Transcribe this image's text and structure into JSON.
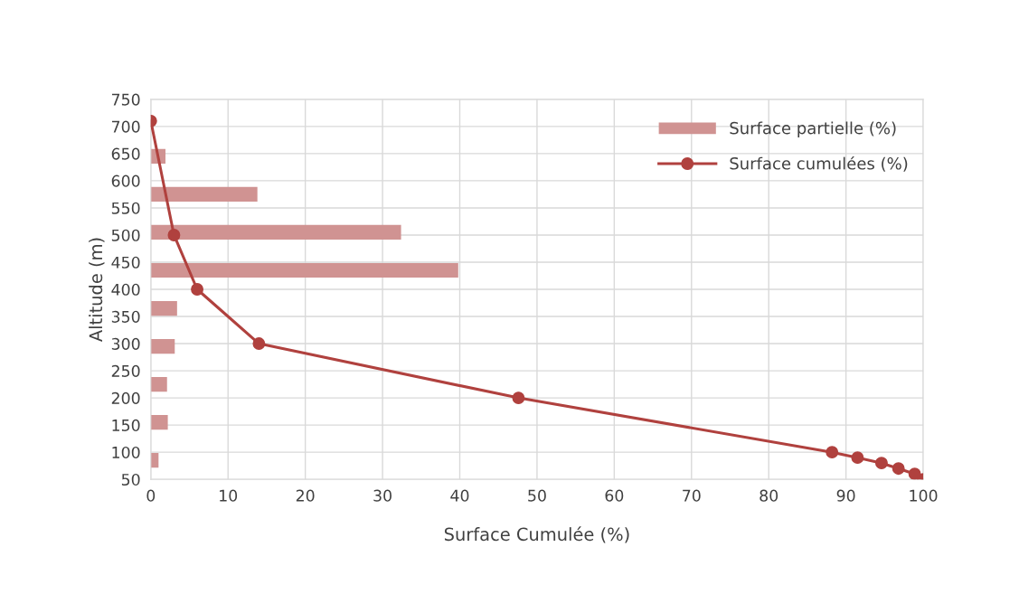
{
  "chart_data": {
    "type": "bar",
    "orientation": "horizontal",
    "xlabel": "Surface Cumulée (%)",
    "ylabel": "Altitude (m)",
    "xlim": [
      0,
      100
    ],
    "xticks": [
      0,
      10,
      20,
      30,
      40,
      50,
      60,
      70,
      80,
      90,
      100
    ],
    "ylim": [
      50,
      750
    ],
    "yticks": [
      50,
      100,
      150,
      200,
      250,
      300,
      350,
      400,
      450,
      500,
      550,
      600,
      650,
      700,
      750
    ],
    "grid": true,
    "legend": "top right",
    "series": [
      {
        "name": "Surface partielle (%)",
        "color": "#d09392",
        "x": [
          85,
          155,
          225,
          295,
          365,
          435,
          505,
          575,
          645
        ],
        "values": [
          1,
          2.2,
          2.1,
          3.1,
          3.4,
          39.8,
          32.4,
          13.8,
          1.9
        ]
      },
      {
        "name": "Surface cumulées (%)",
        "type": "line",
        "color": "#b0413e",
        "marker": "circle",
        "x": [
          710,
          500,
          400,
          300,
          200,
          100,
          90,
          80,
          70,
          60,
          50
        ],
        "values": [
          0,
          3,
          6,
          14,
          47.6,
          88.2,
          91.5,
          94.6,
          96.8,
          98.9,
          100
        ]
      }
    ]
  }
}
